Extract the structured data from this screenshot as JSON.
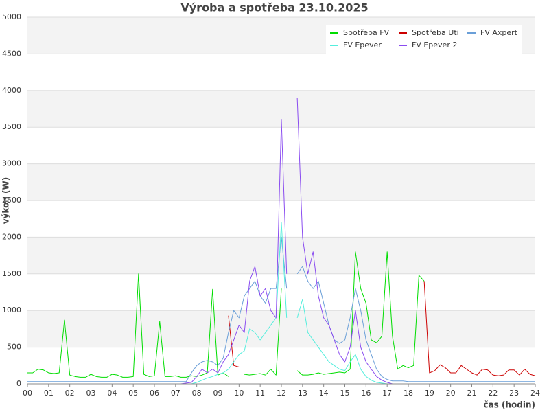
{
  "chart_data": {
    "type": "line",
    "title": "Výroba a spotřeba 23.10.2025",
    "x_label": "čas (hodin)",
    "y_label": "výkon (W)",
    "x": [
      0,
      0.25,
      0.5,
      0.75,
      1,
      1.25,
      1.5,
      1.75,
      2,
      2.25,
      2.5,
      2.75,
      3,
      3.25,
      3.5,
      3.75,
      4,
      4.25,
      4.5,
      4.75,
      5,
      5.25,
      5.5,
      5.75,
      6,
      6.25,
      6.5,
      6.75,
      7,
      7.25,
      7.5,
      7.75,
      8,
      8.25,
      8.5,
      8.75,
      9,
      9.25,
      9.5,
      9.75,
      10,
      10.25,
      10.5,
      10.75,
      11,
      11.25,
      11.5,
      11.75,
      12,
      12.25,
      12.5,
      12.75,
      13,
      13.25,
      13.5,
      13.75,
      14,
      14.25,
      14.5,
      14.75,
      15,
      15.25,
      15.5,
      15.75,
      16,
      16.25,
      16.5,
      16.75,
      17,
      17.25,
      17.5,
      17.75,
      18,
      18.25,
      18.5,
      18.75,
      19,
      19.25,
      19.5,
      19.75,
      20,
      20.25,
      20.5,
      20.75,
      21,
      21.25,
      21.5,
      21.75,
      22,
      22.25,
      22.5,
      22.75,
      23,
      23.25,
      23.5,
      23.75,
      24
    ],
    "series": [
      {
        "name": "Spotřeba FV",
        "color": "#00dd00",
        "values": [
          150,
          150,
          200,
          190,
          150,
          140,
          150,
          870,
          120,
          100,
          90,
          90,
          130,
          100,
          90,
          90,
          130,
          120,
          90,
          90,
          100,
          1500,
          130,
          100,
          110,
          850,
          100,
          100,
          110,
          90,
          90,
          110,
          100,
          120,
          150,
          1290,
          120,
          150,
          100,
          null,
          null,
          130,
          120,
          130,
          140,
          120,
          200,
          120,
          1300,
          null,
          null,
          180,
          120,
          120,
          130,
          150,
          130,
          140,
          150,
          160,
          150,
          200,
          1800,
          1300,
          1100,
          600,
          560,
          650,
          1800,
          650,
          200,
          250,
          220,
          250,
          1480,
          1400,
          null,
          null,
          null,
          null,
          null,
          null,
          null,
          null,
          null,
          null,
          null,
          null,
          null,
          null,
          null,
          null,
          null,
          null,
          null,
          null,
          null
        ]
      },
      {
        "name": "Spotřeba Uti",
        "color": "#cc0000",
        "values": [
          null,
          null,
          null,
          null,
          null,
          null,
          null,
          null,
          null,
          null,
          null,
          null,
          null,
          null,
          null,
          null,
          null,
          null,
          null,
          null,
          null,
          null,
          null,
          null,
          null,
          null,
          null,
          null,
          null,
          null,
          null,
          null,
          null,
          null,
          null,
          null,
          null,
          null,
          930,
          250,
          230,
          null,
          null,
          null,
          null,
          null,
          null,
          null,
          null,
          null,
          null,
          null,
          null,
          null,
          null,
          null,
          null,
          null,
          null,
          null,
          null,
          null,
          null,
          null,
          null,
          null,
          null,
          null,
          null,
          null,
          null,
          null,
          null,
          null,
          null,
          1400,
          150,
          180,
          260,
          220,
          150,
          150,
          250,
          200,
          150,
          120,
          200,
          190,
          120,
          110,
          120,
          190,
          190,
          120,
          200,
          130,
          110
        ]
      },
      {
        "name": "FV Axpert",
        "color": "#6a9fd8",
        "values": [
          30,
          30,
          30,
          30,
          30,
          30,
          30,
          30,
          30,
          30,
          30,
          30,
          30,
          30,
          30,
          30,
          30,
          30,
          30,
          30,
          30,
          30,
          30,
          30,
          30,
          30,
          30,
          30,
          30,
          30,
          30,
          150,
          250,
          300,
          320,
          300,
          250,
          350,
          700,
          1000,
          900,
          1200,
          1300,
          1400,
          1200,
          1100,
          1300,
          1300,
          2000,
          1300,
          null,
          1500,
          1600,
          1400,
          1300,
          1400,
          1100,
          800,
          600,
          550,
          600,
          900,
          1300,
          1000,
          600,
          400,
          200,
          100,
          60,
          40,
          40,
          40,
          30,
          30,
          30,
          30,
          30,
          30,
          30,
          30,
          30,
          30,
          30,
          30,
          30,
          30,
          30,
          30,
          30,
          30,
          30,
          30,
          30,
          30,
          30,
          30,
          30
        ]
      },
      {
        "name": "FV Epever",
        "color": "#55eedd",
        "values": [
          0,
          0,
          0,
          0,
          0,
          0,
          0,
          0,
          0,
          0,
          0,
          0,
          0,
          0,
          0,
          0,
          0,
          0,
          0,
          0,
          0,
          0,
          0,
          0,
          0,
          0,
          0,
          0,
          0,
          0,
          0,
          0,
          20,
          50,
          80,
          100,
          130,
          150,
          200,
          300,
          400,
          450,
          750,
          700,
          600,
          700,
          800,
          900,
          2200,
          900,
          null,
          900,
          1150,
          700,
          600,
          500,
          400,
          300,
          250,
          200,
          180,
          300,
          400,
          200,
          100,
          50,
          20,
          10,
          0,
          0,
          0,
          0,
          0,
          0,
          0,
          0,
          0,
          0,
          0,
          0,
          0,
          0,
          0,
          0,
          0,
          0,
          0,
          0,
          0,
          0,
          0,
          0,
          0,
          0,
          0,
          0,
          0
        ]
      },
      {
        "name": "FV Epever 2",
        "color": "#8a4cf0",
        "values": [
          0,
          0,
          0,
          0,
          0,
          0,
          0,
          0,
          0,
          0,
          0,
          0,
          0,
          0,
          0,
          0,
          0,
          0,
          0,
          0,
          0,
          0,
          0,
          0,
          0,
          0,
          0,
          0,
          0,
          0,
          10,
          20,
          100,
          200,
          150,
          200,
          150,
          300,
          400,
          600,
          800,
          700,
          1400,
          1600,
          1200,
          1300,
          1000,
          900,
          3600,
          1500,
          null,
          3900,
          2000,
          1500,
          1800,
          1200,
          900,
          800,
          600,
          400,
          300,
          500,
          1000,
          500,
          300,
          200,
          100,
          50,
          20,
          0,
          0,
          0,
          0,
          0,
          0,
          0,
          0,
          0,
          0,
          0,
          0,
          0,
          0,
          0,
          0,
          0,
          0,
          0,
          0,
          0,
          0,
          0,
          0,
          0,
          0,
          0,
          0
        ]
      }
    ],
    "xlim": [
      0,
      24
    ],
    "xticks": [
      {
        "value": 0,
        "label": "00"
      },
      {
        "value": 1,
        "label": "01"
      },
      {
        "value": 2,
        "label": "02"
      },
      {
        "value": 3,
        "label": "03"
      },
      {
        "value": 4,
        "label": "04"
      },
      {
        "value": 5,
        "label": "05"
      },
      {
        "value": 6,
        "label": "06"
      },
      {
        "value": 7,
        "label": "07"
      },
      {
        "value": 8,
        "label": "08"
      },
      {
        "value": 9,
        "label": "09"
      },
      10,
      11,
      12,
      13,
      14,
      15,
      16,
      17,
      18,
      19,
      20,
      21,
      22,
      23,
      24
    ],
    "ylim": [
      0,
      5000
    ],
    "yticks": [
      0,
      500,
      1000,
      1500,
      2000,
      2500,
      3000,
      3500,
      4000,
      4500,
      5000
    ],
    "grid": true,
    "legend": "upper right"
  }
}
